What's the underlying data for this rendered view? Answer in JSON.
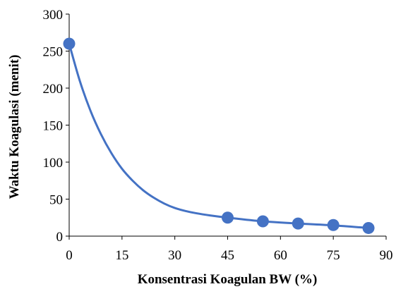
{
  "chart_data": {
    "type": "scatter",
    "title": "",
    "xlabel": "Konsentrasi Koagulan BW (%)",
    "ylabel": "Waktu Koagulasi (menit)",
    "xlim": [
      0,
      90
    ],
    "ylim": [
      0,
      300
    ],
    "x_ticks": [
      0,
      15,
      30,
      45,
      60,
      75,
      90
    ],
    "y_ticks": [
      0,
      50,
      100,
      150,
      200,
      250,
      300
    ],
    "x_tick_labels": [
      "0",
      "15",
      "30",
      "45",
      "60",
      "75",
      "90"
    ],
    "y_tick_labels": [
      "0",
      "50",
      "100",
      "150",
      "200",
      "250",
      "300"
    ],
    "grid": false,
    "legend": "none",
    "series": [
      {
        "x": [
          0,
          45,
          55,
          65,
          75,
          85
        ],
        "y": [
          260,
          25,
          20,
          17,
          15,
          11
        ],
        "color": "#4472C4"
      }
    ],
    "trendline": {
      "curve": "smooth",
      "x": [
        0,
        3,
        6,
        9,
        12,
        15,
        18,
        21,
        24,
        27,
        30,
        33,
        36,
        40,
        45,
        55,
        65,
        75,
        85
      ],
      "y": [
        260,
        210,
        170,
        138,
        112,
        91,
        75,
        62,
        52,
        44,
        38,
        34,
        31,
        28,
        25,
        20,
        17,
        14.5,
        11
      ],
      "color": "#4472C4"
    }
  }
}
